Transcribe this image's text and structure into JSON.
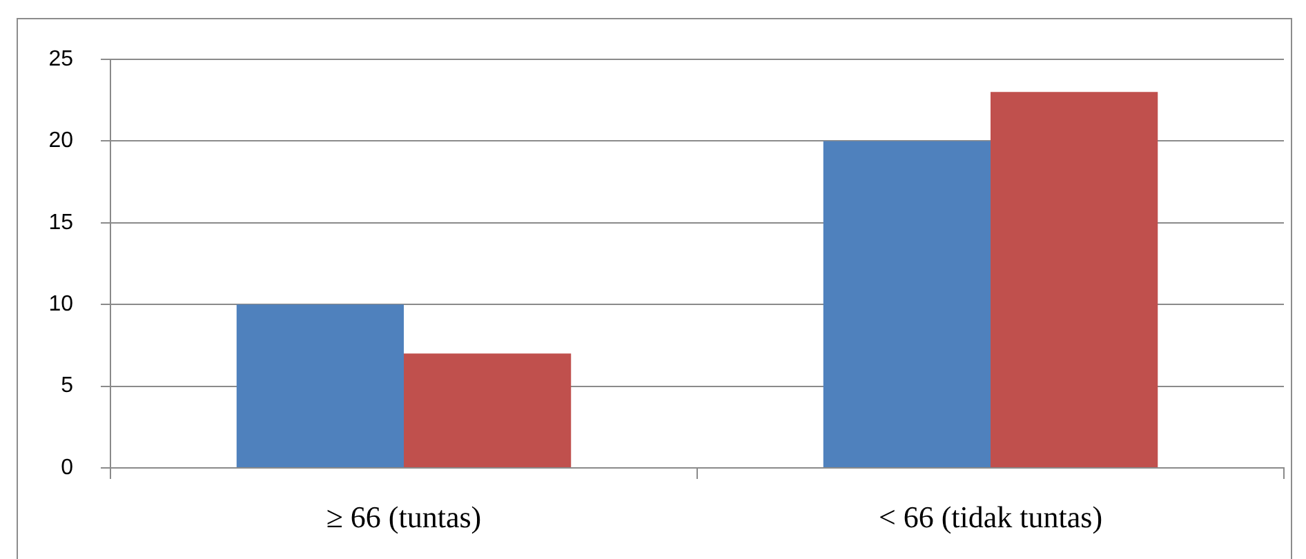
{
  "chart_data": {
    "type": "bar",
    "categories": [
      "≥ 66 (tuntas)",
      "< 66 (tidak tuntas)"
    ],
    "series": [
      {
        "color": "#4f81bd",
        "values": [
          10,
          20
        ]
      },
      {
        "color": "#c0504d",
        "values": [
          7,
          23
        ]
      }
    ],
    "ylim": [
      0,
      25
    ],
    "yticks": [
      0,
      5,
      10,
      15,
      20,
      25
    ],
    "grid": "y",
    "legend": false
  }
}
